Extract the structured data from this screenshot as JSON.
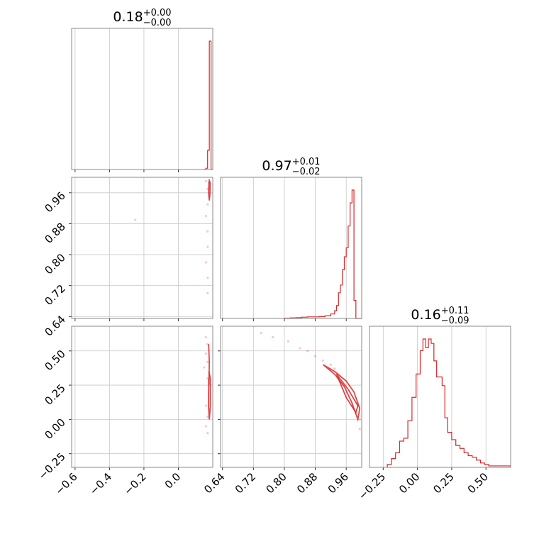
{
  "chart_data": {
    "type": "corner",
    "color": "#d62728",
    "parameters": [
      {
        "title": {
          "median": "0.18",
          "plus": "+0.00",
          "minus": "−0.00"
        },
        "range": [
          -0.62,
          0.2
        ],
        "ticks": [
          -0.6,
          -0.4,
          -0.2,
          0.0
        ],
        "tick_labels": [
          "−0.6",
          "−0.4",
          "−0.2",
          "0.0"
        ]
      },
      {
        "title": {
          "median": "0.97",
          "plus": "+0.01",
          "minus": "−0.02"
        },
        "range": [
          0.635,
          1.0
        ],
        "ticks": [
          0.64,
          0.72,
          0.8,
          0.88,
          0.96
        ],
        "tick_labels": [
          "0.64",
          "0.72",
          "0.80",
          "0.88",
          "0.96"
        ]
      },
      {
        "title": {
          "median": "0.16",
          "plus": "+0.11",
          "minus": "−0.09"
        },
        "range": [
          -0.35,
          0.68
        ],
        "ticks": [
          -0.25,
          0.0,
          0.25,
          0.5
        ],
        "tick_labels": [
          "−0.25",
          "0.00",
          "0.25",
          "0.50"
        ]
      }
    ],
    "histograms": [
      {
        "param": 0,
        "edges": [
          0.15,
          0.16,
          0.17,
          0.18,
          0.19,
          0.2
        ],
        "counts": [
          0,
          0.01,
          0.15,
          1.0,
          0
        ]
      },
      {
        "param": 1,
        "edges": [
          0.8,
          0.815,
          0.83,
          0.845,
          0.86,
          0.875,
          0.89,
          0.905,
          0.92,
          0.93,
          0.935,
          0.94,
          0.945,
          0.95,
          0.955,
          0.96,
          0.965,
          0.97,
          0.975,
          0.98,
          0.985,
          0.99,
          0.995,
          1.0
        ],
        "counts": [
          0.002,
          0.004,
          0.006,
          0.01,
          0.012,
          0.012,
          0.014,
          0.02,
          0.035,
          0.06,
          0.1,
          0.2,
          0.26,
          0.38,
          0.48,
          0.55,
          0.72,
          0.9,
          1.0,
          0.14,
          0.0,
          0.0,
          0.0
        ]
      },
      {
        "param": 2,
        "edges": [
          -0.22,
          -0.19,
          -0.16,
          -0.13,
          -0.1,
          -0.07,
          -0.04,
          -0.01,
          0.02,
          0.04,
          0.06,
          0.08,
          0.1,
          0.12,
          0.14,
          0.16,
          0.18,
          0.2,
          0.22,
          0.25,
          0.28,
          0.31,
          0.34,
          0.37,
          0.4,
          0.43,
          0.46,
          0.49,
          0.52,
          0.55,
          0.58,
          0.61,
          0.64,
          0.68
        ],
        "counts": [
          0.02,
          0.06,
          0.1,
          0.18,
          0.2,
          0.32,
          0.48,
          0.64,
          0.8,
          0.88,
          0.82,
          0.88,
          0.85,
          0.73,
          0.62,
          0.62,
          0.56,
          0.34,
          0.24,
          0.19,
          0.15,
          0.13,
          0.1,
          0.08,
          0.07,
          0.05,
          0.03,
          0.02,
          0.01,
          0.01,
          0.01,
          0.01,
          0.01
        ]
      }
    ],
    "scatter_2d": [
      {
        "x_param": 0,
        "y_param": 1,
        "points": [
          [
            0.16,
            0.99
          ],
          [
            0.17,
            0.97
          ],
          [
            0.17,
            0.93
          ],
          [
            0.16,
            0.9
          ],
          [
            0.17,
            0.86
          ],
          [
            0.17,
            0.82
          ],
          [
            0.16,
            0.78
          ],
          [
            0.17,
            0.74
          ],
          [
            0.18,
            0.95
          ],
          [
            -0.25,
            0.89
          ],
          [
            0.18,
            0.985
          ],
          [
            0.17,
            0.7
          ]
        ],
        "contours": [
          [
            [
              0.178,
              0.995
            ],
            [
              0.185,
              0.985
            ],
            [
              0.184,
              0.96
            ],
            [
              0.18,
              0.94
            ],
            [
              0.176,
              0.96
            ],
            [
              0.178,
              0.99
            ]
          ]
        ]
      },
      {
        "x_param": 0,
        "y_param": 2,
        "points": [
          [
            0.16,
            0.6
          ],
          [
            0.17,
            0.55
          ],
          [
            0.16,
            0.48
          ],
          [
            0.17,
            0.42
          ],
          [
            0.17,
            0.3
          ],
          [
            0.16,
            0.1
          ],
          [
            0.17,
            0.02
          ],
          [
            0.16,
            -0.05
          ],
          [
            0.17,
            -0.1
          ],
          [
            0.15,
            0.38
          ]
        ],
        "contours": [
          [
            [
              0.178,
              0.35
            ],
            [
              0.186,
              0.3
            ],
            [
              0.186,
              0.1
            ],
            [
              0.18,
              0.0
            ],
            [
              0.175,
              0.1
            ],
            [
              0.177,
              0.3
            ]
          ],
          [
            [
              0.176,
              0.55
            ],
            [
              0.18,
              0.42
            ],
            [
              0.177,
              0.25
            ]
          ]
        ]
      },
      {
        "x_param": 1,
        "y_param": 2,
        "points": [
          [
            0.74,
            0.63
          ],
          [
            0.77,
            0.6
          ],
          [
            0.81,
            0.57
          ],
          [
            0.84,
            0.52
          ],
          [
            0.86,
            0.5
          ],
          [
            0.88,
            0.46
          ],
          [
            0.9,
            0.43
          ],
          [
            0.92,
            0.4
          ],
          [
            0.99,
            0.1
          ],
          [
            0.995,
            0.0
          ],
          [
            0.995,
            -0.07
          ],
          [
            0.93,
            0.37
          ]
        ],
        "contours": [
          [
            [
              0.9,
              0.4
            ],
            [
              0.93,
              0.35
            ],
            [
              0.96,
              0.28
            ],
            [
              0.98,
              0.2
            ],
            [
              0.995,
              0.08
            ],
            [
              0.99,
              0.0
            ],
            [
              0.975,
              0.12
            ],
            [
              0.955,
              0.24
            ],
            [
              0.93,
              0.33
            ],
            [
              0.9,
              0.4
            ]
          ],
          [
            [
              0.935,
              0.33
            ],
            [
              0.965,
              0.22
            ],
            [
              0.99,
              0.1
            ],
            [
              0.985,
              0.05
            ],
            [
              0.96,
              0.16
            ],
            [
              0.935,
              0.33
            ]
          ]
        ]
      }
    ]
  }
}
